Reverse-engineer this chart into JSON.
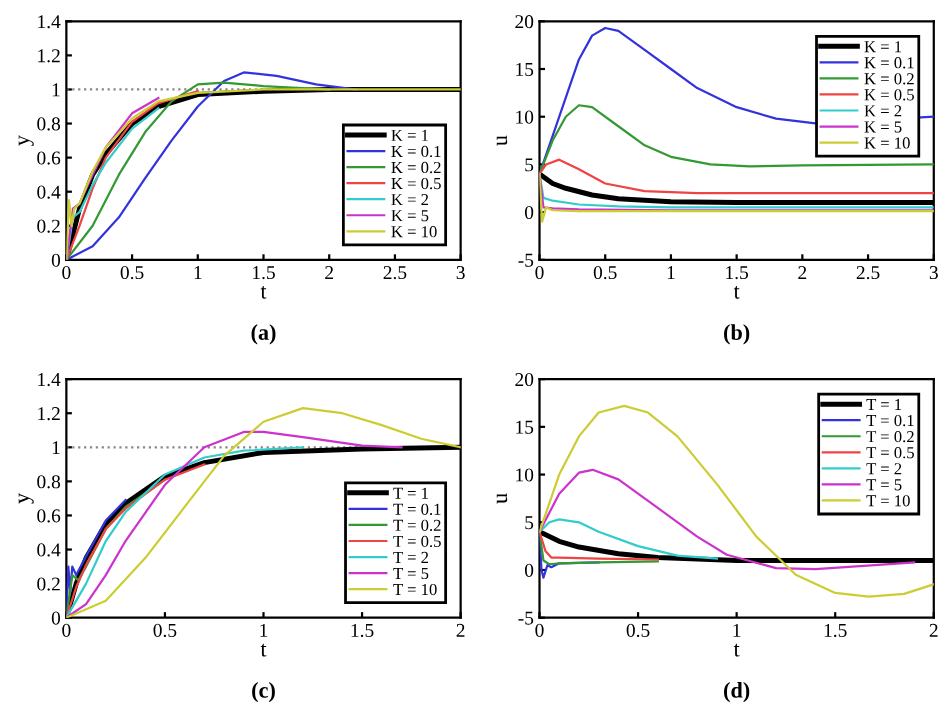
{
  "chart_data": [
    {
      "type": "line",
      "xlabel": "t",
      "ylabel": "y",
      "annotations": [
        "(a)"
      ],
      "xlim": [
        0,
        3
      ],
      "ylim": [
        0,
        1.4
      ],
      "xticks": [
        0,
        0.5,
        1,
        1.5,
        2,
        2.5,
        3
      ],
      "yticks": [
        0,
        0.2,
        0.4,
        0.6,
        0.8,
        1,
        1.2,
        1.4
      ],
      "legend": "lower right",
      "grid": false,
      "ref_lines": [
        {
          "axis": "y",
          "value": 1,
          "color": "#888888",
          "line_style": "dotted"
        }
      ],
      "series": [
        {
          "name": "K = 1",
          "color": "#000000",
          "x": [
            0,
            0.1,
            0.2,
            0.3,
            0.5,
            0.7,
            1,
            1.5,
            2,
            3
          ],
          "values": [
            0,
            0.3,
            0.5,
            0.62,
            0.8,
            0.9,
            0.97,
            0.99,
            1,
            1
          ]
        },
        {
          "name": "K = 0.1",
          "color": "#3333dd",
          "x": [
            0,
            0.2,
            0.4,
            0.6,
            0.8,
            1,
            1.2,
            1.35,
            1.6,
            1.9,
            2.2
          ],
          "values": [
            0,
            0.08,
            0.25,
            0.48,
            0.7,
            0.9,
            1.05,
            1.1,
            1.08,
            1.03,
            1.0
          ]
        },
        {
          "name": "K = 0.2",
          "color": "#339933",
          "x": [
            0,
            0.2,
            0.4,
            0.6,
            0.8,
            1,
            1.2,
            1.5,
            2
          ],
          "values": [
            0,
            0.2,
            0.5,
            0.75,
            0.93,
            1.03,
            1.04,
            1.02,
            1.0
          ]
        },
        {
          "name": "K = 0.5",
          "color": "#ee4444",
          "x": [
            0,
            0.1,
            0.2,
            0.3,
            0.5,
            0.7,
            1
          ],
          "values": [
            0,
            0.2,
            0.42,
            0.6,
            0.81,
            0.92,
            0.99
          ]
        },
        {
          "name": "K = 2",
          "color": "#33cccc",
          "x": [
            0,
            0.05,
            0.1,
            0.2,
            0.3,
            0.5,
            0.7
          ],
          "values": [
            0,
            0.25,
            0.28,
            0.44,
            0.57,
            0.77,
            0.89
          ]
        },
        {
          "name": "K = 5",
          "color": "#cc33cc",
          "x": [
            0,
            0.05,
            0.1,
            0.2,
            0.3,
            0.5,
            0.7
          ],
          "values": [
            0,
            0.3,
            0.33,
            0.5,
            0.66,
            0.86,
            0.95
          ]
        },
        {
          "name": "K = 10",
          "color": "#cccc33",
          "x": [
            0,
            0.02,
            0.04,
            0.06,
            0.1,
            0.2,
            0.3,
            0.5,
            0.7,
            1,
            1.5,
            3
          ],
          "values": [
            0,
            0.35,
            0.2,
            0.3,
            0.33,
            0.52,
            0.66,
            0.83,
            0.93,
            0.98,
            1,
            1
          ]
        }
      ]
    },
    {
      "type": "line",
      "xlabel": "t",
      "ylabel": "u",
      "annotations": [
        "(b)"
      ],
      "xlim": [
        0,
        3
      ],
      "ylim": [
        -5,
        20
      ],
      "xticks": [
        0,
        0.5,
        1,
        1.5,
        2,
        2.5,
        3
      ],
      "yticks": [
        -5,
        0,
        5,
        10,
        15,
        20
      ],
      "legend": "upper right",
      "grid": false,
      "series": [
        {
          "name": "K = 1",
          "color": "#000000",
          "x": [
            0,
            0.1,
            0.2,
            0.4,
            0.6,
            1,
            1.5,
            2,
            3
          ],
          "values": [
            4,
            3,
            2.5,
            1.8,
            1.4,
            1.1,
            1,
            1,
            1
          ]
        },
        {
          "name": "K = 0.1",
          "color": "#3333dd",
          "x": [
            0,
            0.1,
            0.2,
            0.3,
            0.4,
            0.5,
            0.6,
            0.8,
            1,
            1.2,
            1.5,
            1.8,
            2.1,
            3
          ],
          "values": [
            4,
            8,
            12,
            16,
            18.5,
            19.3,
            19,
            17,
            15,
            13,
            11,
            9.8,
            9.3,
            10
          ]
        },
        {
          "name": "K = 0.2",
          "color": "#339933",
          "x": [
            0,
            0.1,
            0.2,
            0.3,
            0.4,
            0.6,
            0.8,
            1,
            1.3,
            1.6,
            2,
            3
          ],
          "values": [
            4,
            7.5,
            10,
            11.2,
            11,
            9,
            7,
            5.8,
            5,
            4.8,
            4.9,
            5
          ]
        },
        {
          "name": "K = 0.5",
          "color": "#ee4444",
          "x": [
            0,
            0.05,
            0.15,
            0.3,
            0.5,
            0.8,
            1.2,
            3
          ],
          "values": [
            4,
            5,
            5.5,
            4.5,
            3,
            2.2,
            2,
            2
          ]
        },
        {
          "name": "K = 2",
          "color": "#33cccc",
          "x": [
            0,
            0.03,
            0.1,
            0.3,
            0.6,
            1,
            3
          ],
          "values": [
            4,
            1.5,
            1.2,
            0.8,
            0.6,
            0.5,
            0.5
          ]
        },
        {
          "name": "K = 5",
          "color": "#cc33cc",
          "x": [
            0,
            0.03,
            0.1,
            0.3,
            1,
            3
          ],
          "values": [
            4,
            0.5,
            0.4,
            0.3,
            0.2,
            0.2
          ]
        },
        {
          "name": "K = 10",
          "color": "#cccc33",
          "x": [
            0,
            0.02,
            0.05,
            0.1,
            0.3,
            3
          ],
          "values": [
            4,
            -1,
            0.5,
            0.2,
            0.1,
            0.1
          ]
        }
      ]
    },
    {
      "type": "line",
      "xlabel": "t",
      "ylabel": "y",
      "annotations": [
        "(c)"
      ],
      "xlim": [
        0,
        2
      ],
      "ylim": [
        0,
        1.4
      ],
      "xticks": [
        0,
        0.5,
        1,
        1.5,
        2
      ],
      "yticks": [
        0,
        0.2,
        0.4,
        0.6,
        0.8,
        1,
        1.2,
        1.4
      ],
      "legend": "lower right",
      "grid": false,
      "ref_lines": [
        {
          "axis": "y",
          "value": 1,
          "color": "#888888",
          "line_style": "dotted"
        }
      ],
      "series": [
        {
          "name": "T = 1",
          "color": "#000000",
          "x": [
            0,
            0.05,
            0.1,
            0.2,
            0.3,
            0.5,
            0.7,
            1,
            1.5,
            2
          ],
          "values": [
            0,
            0.2,
            0.35,
            0.55,
            0.67,
            0.83,
            0.91,
            0.97,
            0.99,
            1
          ]
        },
        {
          "name": "T = 0.1",
          "color": "#3333dd",
          "x": [
            0,
            0.01,
            0.02,
            0.03,
            0.05,
            0.1,
            0.2,
            0.3
          ],
          "values": [
            0,
            0.3,
            0.15,
            0.3,
            0.25,
            0.36,
            0.57,
            0.69
          ]
        },
        {
          "name": "T = 0.2",
          "color": "#339933",
          "x": [
            0,
            0.03,
            0.06,
            0.1,
            0.2,
            0.3,
            0.5
          ],
          "values": [
            0,
            0.25,
            0.22,
            0.3,
            0.52,
            0.65,
            0.81
          ]
        },
        {
          "name": "T = 0.5",
          "color": "#ee4444",
          "x": [
            0,
            0.05,
            0.1,
            0.2,
            0.3,
            0.5,
            0.7
          ],
          "values": [
            0,
            0.18,
            0.31,
            0.52,
            0.64,
            0.81,
            0.9
          ]
        },
        {
          "name": "T = 2",
          "color": "#33cccc",
          "x": [
            0,
            0.1,
            0.2,
            0.3,
            0.5,
            0.7,
            0.9,
            1.2
          ],
          "values": [
            0,
            0.2,
            0.45,
            0.62,
            0.84,
            0.94,
            0.98,
            1
          ]
        },
        {
          "name": "T = 5",
          "color": "#cc33cc",
          "x": [
            0,
            0.1,
            0.2,
            0.3,
            0.5,
            0.7,
            0.9,
            1,
            1.2,
            1.5,
            1.7
          ],
          "values": [
            0,
            0.08,
            0.25,
            0.45,
            0.78,
            1.0,
            1.09,
            1.09,
            1.06,
            1.01,
            1
          ]
        },
        {
          "name": "T = 10",
          "color": "#cccc33",
          "x": [
            0,
            0.2,
            0.4,
            0.6,
            0.8,
            1,
            1.2,
            1.4,
            1.6,
            1.8,
            2
          ],
          "values": [
            0,
            0.1,
            0.35,
            0.65,
            0.95,
            1.15,
            1.23,
            1.2,
            1.13,
            1.05,
            1
          ]
        }
      ]
    },
    {
      "type": "line",
      "xlabel": "t",
      "ylabel": "u",
      "annotations": [
        "(d)"
      ],
      "xlim": [
        0,
        2
      ],
      "ylim": [
        -5,
        20
      ],
      "xticks": [
        0,
        0.5,
        1,
        1.5,
        2
      ],
      "yticks": [
        -5,
        0,
        5,
        10,
        15,
        20
      ],
      "legend": "upper right",
      "grid": false,
      "series": [
        {
          "name": "T = 1",
          "color": "#000000",
          "x": [
            0,
            0.1,
            0.2,
            0.4,
            0.6,
            1,
            1.5,
            2
          ],
          "values": [
            4,
            3,
            2.4,
            1.7,
            1.3,
            1,
            1,
            1
          ]
        },
        {
          "name": "T = 0.1",
          "color": "#3333dd",
          "x": [
            0,
            0.01,
            0.02,
            0.04,
            0.06,
            0.1,
            0.3
          ],
          "values": [
            4,
            0,
            -0.8,
            0.5,
            0.3,
            0.7,
            0.8
          ]
        },
        {
          "name": "T = 0.2",
          "color": "#339933",
          "x": [
            0,
            0.02,
            0.05,
            0.1,
            0.3,
            0.6
          ],
          "values": [
            4,
            1,
            0.6,
            0.7,
            0.8,
            0.9
          ]
        },
        {
          "name": "T = 0.5",
          "color": "#ee4444",
          "x": [
            0,
            0.03,
            0.06,
            0.1,
            0.3,
            0.6
          ],
          "values": [
            4,
            2,
            1.3,
            1.3,
            1.2,
            1.1
          ]
        },
        {
          "name": "T = 2",
          "color": "#33cccc",
          "x": [
            0,
            0.05,
            0.1,
            0.2,
            0.3,
            0.5,
            0.7,
            0.9
          ],
          "values": [
            4,
            5,
            5.3,
            5,
            4,
            2.5,
            1.5,
            1.2
          ]
        },
        {
          "name": "T = 5",
          "color": "#cc33cc",
          "x": [
            0,
            0.1,
            0.2,
            0.27,
            0.4,
            0.6,
            0.8,
            0.95,
            1.2,
            1.4,
            1.7,
            1.9
          ],
          "values": [
            4,
            8,
            10.2,
            10.5,
            9.5,
            6.5,
            3.5,
            1.6,
            0.2,
            0.1,
            0.5,
            0.8
          ]
        },
        {
          "name": "T = 10",
          "color": "#cccc33",
          "x": [
            0,
            0.1,
            0.2,
            0.3,
            0.43,
            0.55,
            0.7,
            0.9,
            1.1,
            1.3,
            1.5,
            1.67,
            1.85,
            2
          ],
          "values": [
            4,
            10,
            14,
            16.5,
            17.2,
            16.5,
            14,
            9,
            3.5,
            -0.5,
            -2.4,
            -2.8,
            -2.5,
            -1.5
          ]
        }
      ]
    }
  ]
}
